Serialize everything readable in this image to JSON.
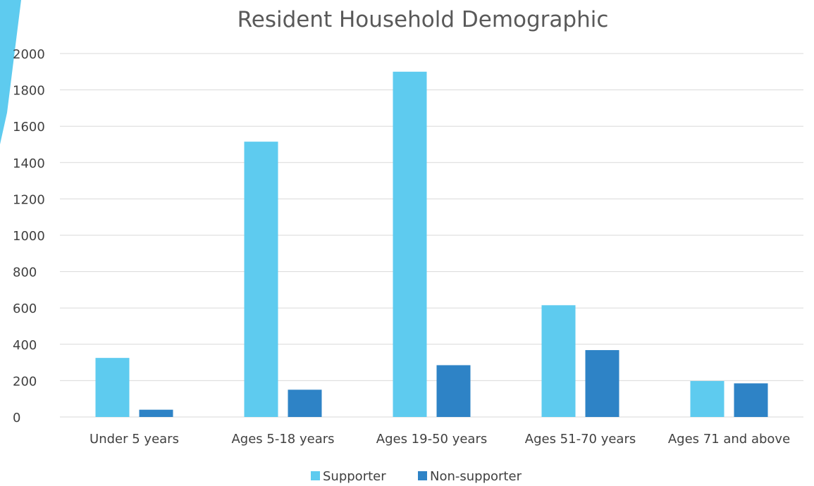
{
  "chart_data": {
    "type": "bar",
    "title": "Resident Household Demographic",
    "xlabel": "",
    "ylabel": "",
    "ylim": [
      0,
      2000
    ],
    "yticks": [
      0,
      200,
      400,
      600,
      800,
      1000,
      1200,
      1400,
      1600,
      1800,
      2000
    ],
    "grid": true,
    "legend_position": "bottom",
    "categories": [
      "Under 5 years",
      "Ages 5-18 years",
      "Ages 19-50 years",
      "Ages 51-70 years",
      "Ages 71 and above"
    ],
    "series": [
      {
        "name": "Supporter",
        "color": "#5ecbef",
        "values": [
          325,
          1515,
          1900,
          615,
          198
        ]
      },
      {
        "name": "Non-supporter",
        "color": "#2e83c6",
        "values": [
          40,
          150,
          285,
          368,
          185
        ]
      }
    ]
  },
  "decor": {
    "accent_color": "#5ecbef"
  }
}
